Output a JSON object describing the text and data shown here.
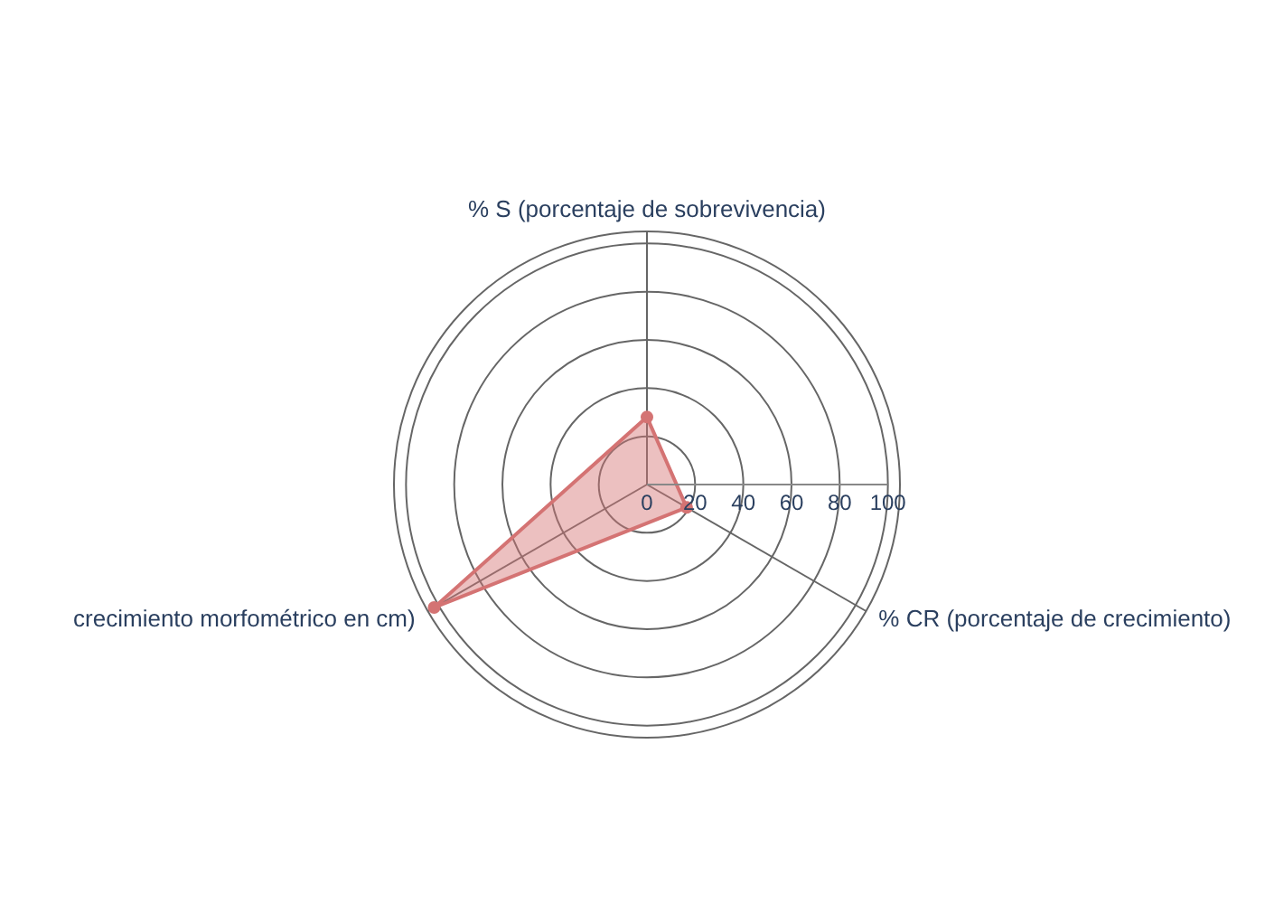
{
  "chart_data": {
    "type": "radar",
    "categories": [
      "% S (porcentaje de sobrevivencia)",
      "% CR (porcentaje de crecimiento)",
      "crecimiento morfométrico en cm)"
    ],
    "series": [
      {
        "color": "#d47373",
        "values": [
          28,
          19,
          102
        ]
      }
    ],
    "ylim": [
      0,
      105
    ],
    "yticks": [
      0,
      20,
      40,
      60,
      80,
      100
    ],
    "grid": true,
    "marker": "circle",
    "legend": false
  }
}
